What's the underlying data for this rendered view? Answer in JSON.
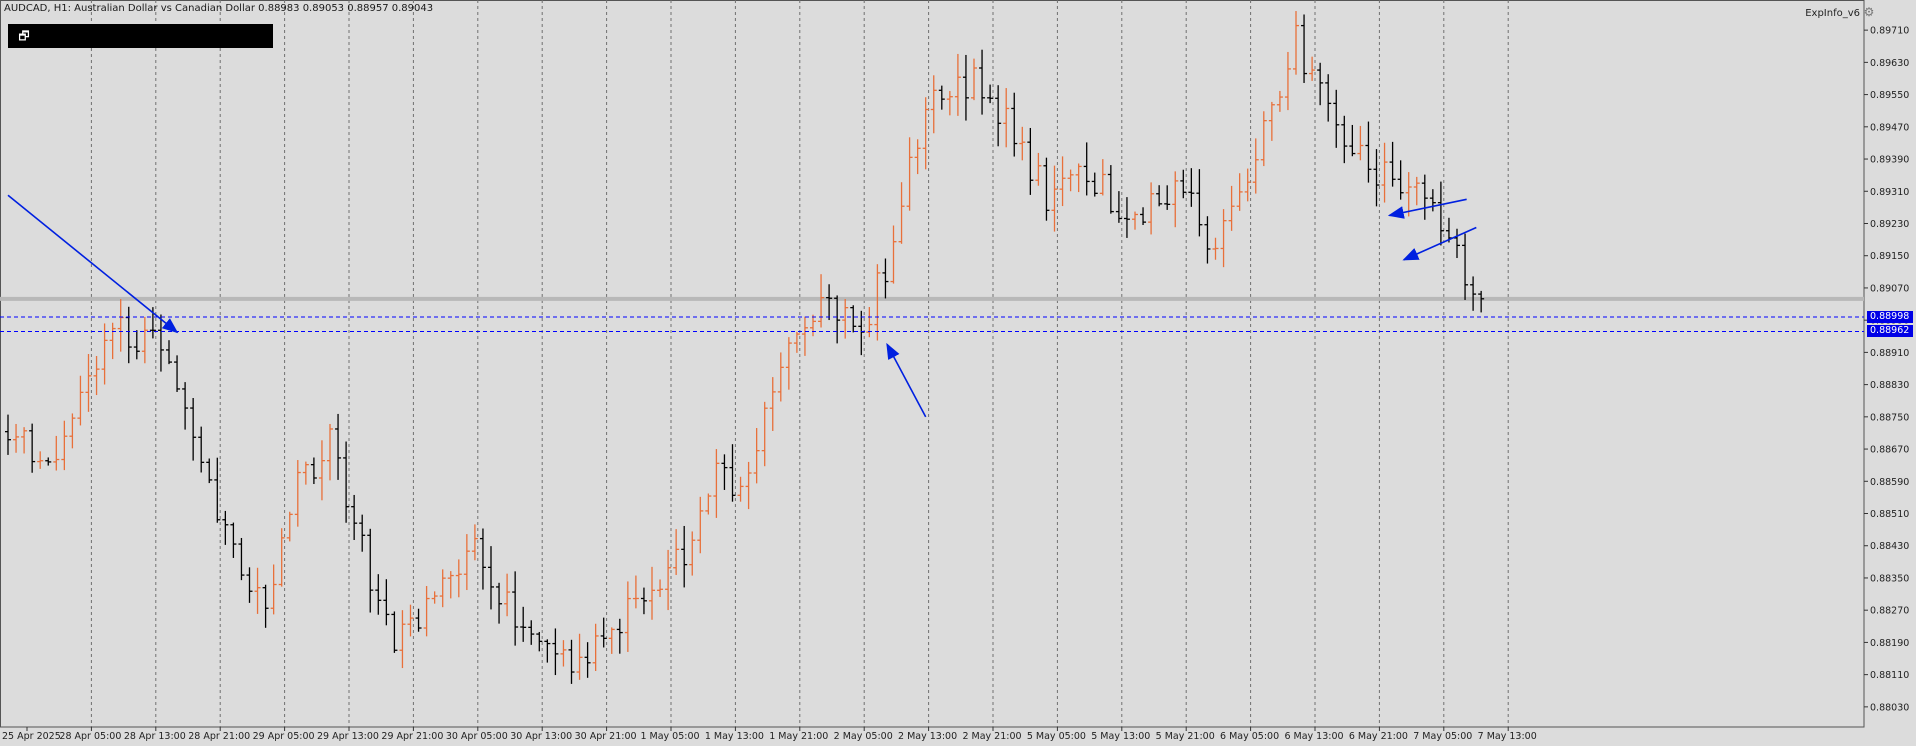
{
  "header": {
    "symbol": "AUDCAD",
    "timeframe": "H1",
    "title_text": "AUDCAD, H1:  Australian Dollar vs Canadian Dollar  0.88983 0.89053 0.88957 0.89043"
  },
  "panel": {
    "restore_icon": "restore-window-icon",
    "restore_glyph": "🗗"
  },
  "indicator": {
    "label": "ExpInfo_v6",
    "icon": "settings-icon",
    "glyph": "⚙"
  },
  "colors": {
    "background": "#dcdcdc",
    "bull_bar": "#e8703a",
    "bear_bar": "#000000",
    "grid": "#707070",
    "hline": "#0000ff",
    "arrow": "#0020e0",
    "price_label_bg": "#0000e6"
  },
  "price_axis": {
    "ticks": [
      "0.89710",
      "0.89630",
      "0.89550",
      "0.89470",
      "0.89390",
      "0.89310",
      "0.89230",
      "0.89150",
      "0.89070",
      "0.88990",
      "0.88910",
      "0.88830",
      "0.88750",
      "0.88670",
      "0.88590",
      "0.88510",
      "0.88430",
      "0.88350",
      "0.88270",
      "0.88190",
      "0.88110",
      "0.88030"
    ]
  },
  "time_axis": {
    "labels": [
      "25 Apr 2025",
      "28 Apr 05:00",
      "28 Apr 13:00",
      "28 Apr 21:00",
      "29 Apr 05:00",
      "29 Apr 13:00",
      "29 Apr 21:00",
      "30 Apr 05:00",
      "30 Apr 13:00",
      "30 Apr 21:00",
      "1 May 05:00",
      "1 May 13:00",
      "1 May 21:00",
      "2 May 05:00",
      "2 May 13:00",
      "2 May 21:00",
      "5 May 05:00",
      "5 May 13:00",
      "5 May 21:00",
      "6 May 05:00",
      "6 May 13:00",
      "6 May 21:00",
      "7 May 05:00",
      "7 May 13:00"
    ]
  },
  "levels": {
    "upper": {
      "price": 0.88998,
      "label": "0.88998"
    },
    "lower": {
      "price": 0.88962,
      "label": "0.88962"
    },
    "current_price": 0.89043
  },
  "annotations": [
    {
      "name": "arrow-annotation-1",
      "from": [
        0,
        0.893
      ],
      "to": [
        3.5,
        0.8896
      ]
    },
    {
      "name": "arrow-annotation-2",
      "from": [
        19.0,
        0.8875
      ],
      "to": [
        18.2,
        0.8893
      ]
    },
    {
      "name": "arrow-annotation-3",
      "from": [
        30.2,
        0.8929
      ],
      "to": [
        28.6,
        0.8925
      ]
    },
    {
      "name": "arrow-annotation-4",
      "from": [
        30.4,
        0.8922
      ],
      "to": [
        28.9,
        0.8914
      ]
    }
  ],
  "chart_data": {
    "type": "ohlc",
    "symbol": "AUDCAD",
    "timeframe": "H1",
    "ylim": [
      0.8798,
      0.8976
    ],
    "seed": 20250507,
    "waypoints": [
      [
        0,
        0.8872
      ],
      [
        6,
        0.886
      ],
      [
        10,
        0.8888
      ],
      [
        13,
        0.8896
      ],
      [
        18,
        0.8895
      ],
      [
        22,
        0.8874
      ],
      [
        27,
        0.8844
      ],
      [
        32,
        0.8829
      ],
      [
        36,
        0.8857
      ],
      [
        40,
        0.887
      ],
      [
        44,
        0.8842
      ],
      [
        48,
        0.8818
      ],
      [
        53,
        0.8833
      ],
      [
        58,
        0.8842
      ],
      [
        63,
        0.8826
      ],
      [
        68,
        0.8814
      ],
      [
        73,
        0.8817
      ],
      [
        79,
        0.8833
      ],
      [
        84,
        0.8842
      ],
      [
        88,
        0.886
      ],
      [
        92,
        0.8858
      ],
      [
        97,
        0.8897
      ],
      [
        102,
        0.8903
      ],
      [
        106,
        0.8897
      ],
      [
        110,
        0.8918
      ],
      [
        114,
        0.8952
      ],
      [
        120,
        0.896
      ],
      [
        125,
        0.8945
      ],
      [
        129,
        0.893
      ],
      [
        134,
        0.8935
      ],
      [
        139,
        0.8925
      ],
      [
        145,
        0.8932
      ],
      [
        150,
        0.8918
      ],
      [
        155,
        0.8942
      ],
      [
        160,
        0.8968
      ],
      [
        165,
        0.8947
      ],
      [
        170,
        0.8935
      ],
      [
        175,
        0.893
      ],
      [
        179,
        0.8918
      ],
      [
        183,
        0.89043
      ]
    ]
  }
}
